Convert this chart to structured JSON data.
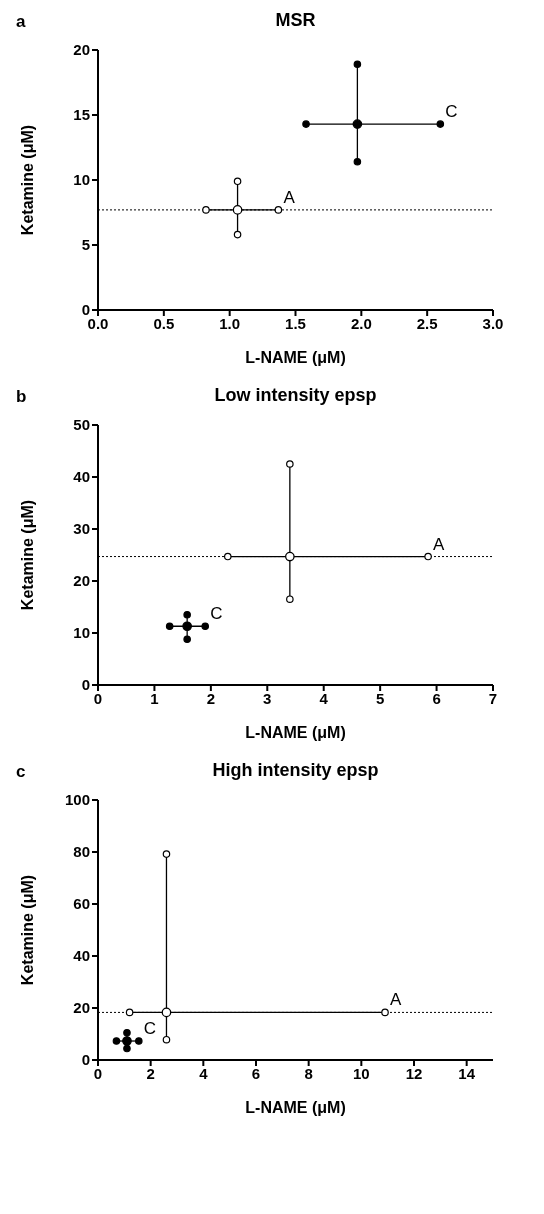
{
  "chart_data": [
    {
      "type": "scatter",
      "title": "MSR",
      "xlabel": "L-NAME (μM)",
      "ylabel": "Ketamine (μM)",
      "marker": "circle",
      "annotations": [
        "a"
      ],
      "xlim": [
        0,
        3
      ],
      "xticks": [
        {
          "value": 0,
          "label": "0.0"
        },
        0.5,
        {
          "value": 1,
          "label": "1.0"
        },
        1.5,
        {
          "value": 2,
          "label": "2.0"
        },
        2.5,
        {
          "value": 3,
          "label": "3.0"
        }
      ],
      "ylim": [
        0,
        20
      ],
      "yticks": [
        0,
        5,
        10,
        15,
        20
      ],
      "ref_lines": [
        {
          "axis": "y",
          "value": 7.7,
          "line_style": "dotted"
        }
      ],
      "series": [
        {
          "name": "A",
          "color": "#ffffff",
          "x": [
            1.06
          ],
          "values": [
            7.7
          ],
          "errors": [
            [
              5.8,
              9.9
            ]
          ],
          "xerrors": [
            [
              0.82,
              1.37
            ]
          ]
        },
        {
          "name": "C",
          "color": "#000000",
          "x": [
            1.97
          ],
          "values": [
            14.3
          ],
          "errors": [
            [
              11.4,
              18.9
            ]
          ],
          "xerrors": [
            [
              1.58,
              2.6
            ]
          ]
        }
      ]
    },
    {
      "type": "scatter",
      "title": "Low intensity epsp",
      "xlabel": "L-NAME (μM)",
      "ylabel": "Ketamine (μM)",
      "marker": "circle",
      "annotations": [
        "b"
      ],
      "xlim": [
        0,
        7
      ],
      "xticks": [
        0,
        1,
        2,
        3,
        4,
        5,
        6,
        7
      ],
      "ylim": [
        0,
        50
      ],
      "yticks": [
        0,
        10,
        20,
        30,
        40,
        50
      ],
      "ref_lines": [
        {
          "axis": "y",
          "value": 24.7,
          "line_style": "dotted"
        }
      ],
      "series": [
        {
          "name": "A",
          "color": "#ffffff",
          "x": [
            3.4
          ],
          "values": [
            24.7
          ],
          "errors": [
            [
              16.5,
              42.5
            ]
          ],
          "xerrors": [
            [
              2.3,
              5.85
            ]
          ]
        },
        {
          "name": "C",
          "color": "#000000",
          "x": [
            1.58
          ],
          "values": [
            11.3
          ],
          "errors": [
            [
              8.8,
              13.5
            ]
          ],
          "xerrors": [
            [
              1.27,
              1.9
            ]
          ]
        }
      ]
    },
    {
      "type": "scatter",
      "title": "High intensity epsp",
      "xlabel": "L-NAME (μM)",
      "ylabel": "Ketamine (μM)",
      "marker": "circle",
      "annotations": [
        "c"
      ],
      "xlim": [
        0,
        15
      ],
      "xticks": [
        0,
        2,
        4,
        6,
        8,
        10,
        12,
        14
      ],
      "ylim": [
        0,
        100
      ],
      "yticks": [
        0,
        20,
        40,
        60,
        80,
        100
      ],
      "ref_lines": [
        {
          "axis": "y",
          "value": 18.3,
          "line_style": "dotted"
        }
      ],
      "series": [
        {
          "name": "A",
          "color": "#ffffff",
          "x": [
            2.6
          ],
          "values": [
            18.3
          ],
          "errors": [
            [
              7.8,
              79.2
            ]
          ],
          "xerrors": [
            [
              1.2,
              10.9
            ]
          ]
        },
        {
          "name": "C",
          "color": "#000000",
          "x": [
            1.1
          ],
          "values": [
            7.3
          ],
          "errors": [
            [
              4.4,
              10.5
            ]
          ],
          "xerrors": [
            [
              0.7,
              1.55
            ]
          ]
        }
      ]
    }
  ]
}
